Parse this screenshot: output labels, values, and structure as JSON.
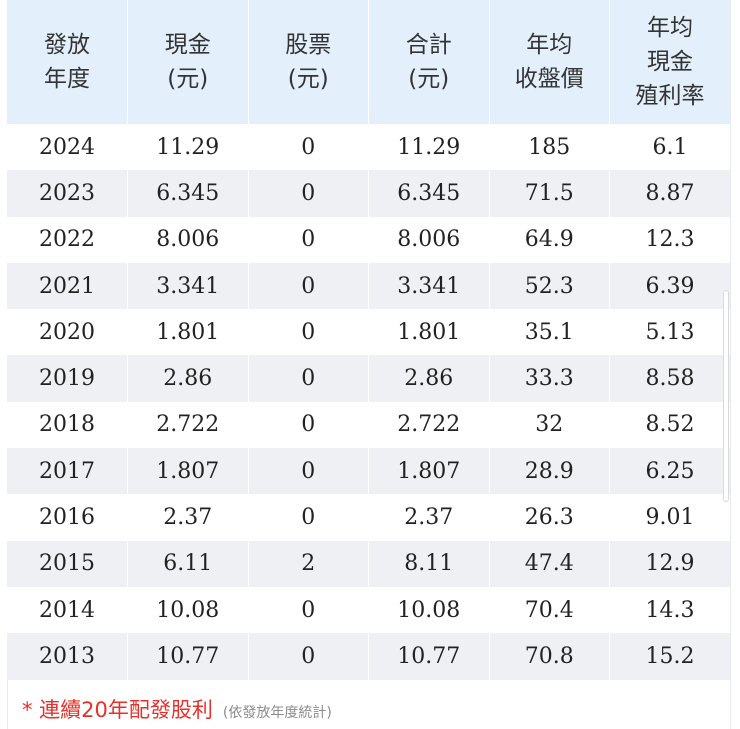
{
  "table": {
    "headers": [
      [
        "發放",
        "年度"
      ],
      [
        "現金",
        "(元)"
      ],
      [
        "股票",
        "(元)"
      ],
      [
        "合計",
        "(元)"
      ],
      [
        "年均",
        "收盤價"
      ],
      [
        "年均",
        "現金",
        "殖利率"
      ]
    ],
    "rows": [
      [
        "2024",
        "11.29",
        "0",
        "11.29",
        "185",
        "6.1"
      ],
      [
        "2023",
        "6.345",
        "0",
        "6.345",
        "71.5",
        "8.87"
      ],
      [
        "2022",
        "8.006",
        "0",
        "8.006",
        "64.9",
        "12.3"
      ],
      [
        "2021",
        "3.341",
        "0",
        "3.341",
        "52.3",
        "6.39"
      ],
      [
        "2020",
        "1.801",
        "0",
        "1.801",
        "35.1",
        "5.13"
      ],
      [
        "2019",
        "2.86",
        "0",
        "2.86",
        "33.3",
        "8.58"
      ],
      [
        "2018",
        "2.722",
        "0",
        "2.722",
        "32",
        "8.52"
      ],
      [
        "2017",
        "1.807",
        "0",
        "1.807",
        "28.9",
        "6.25"
      ],
      [
        "2016",
        "2.37",
        "0",
        "2.37",
        "26.3",
        "9.01"
      ],
      [
        "2015",
        "6.11",
        "2",
        "8.11",
        "47.4",
        "12.9"
      ],
      [
        "2014",
        "10.08",
        "0",
        "10.08",
        "70.4",
        "14.3"
      ],
      [
        "2013",
        "10.77",
        "0",
        "10.77",
        "70.8",
        "15.2"
      ]
    ]
  },
  "footnote": {
    "main": "* 連續20年配發股利",
    "note": "(依發放年度統計)"
  },
  "colors": {
    "header_bg": "#e3f0fc",
    "stripe_bg": "#eef0f3",
    "footnote_red": "#e8302a"
  }
}
